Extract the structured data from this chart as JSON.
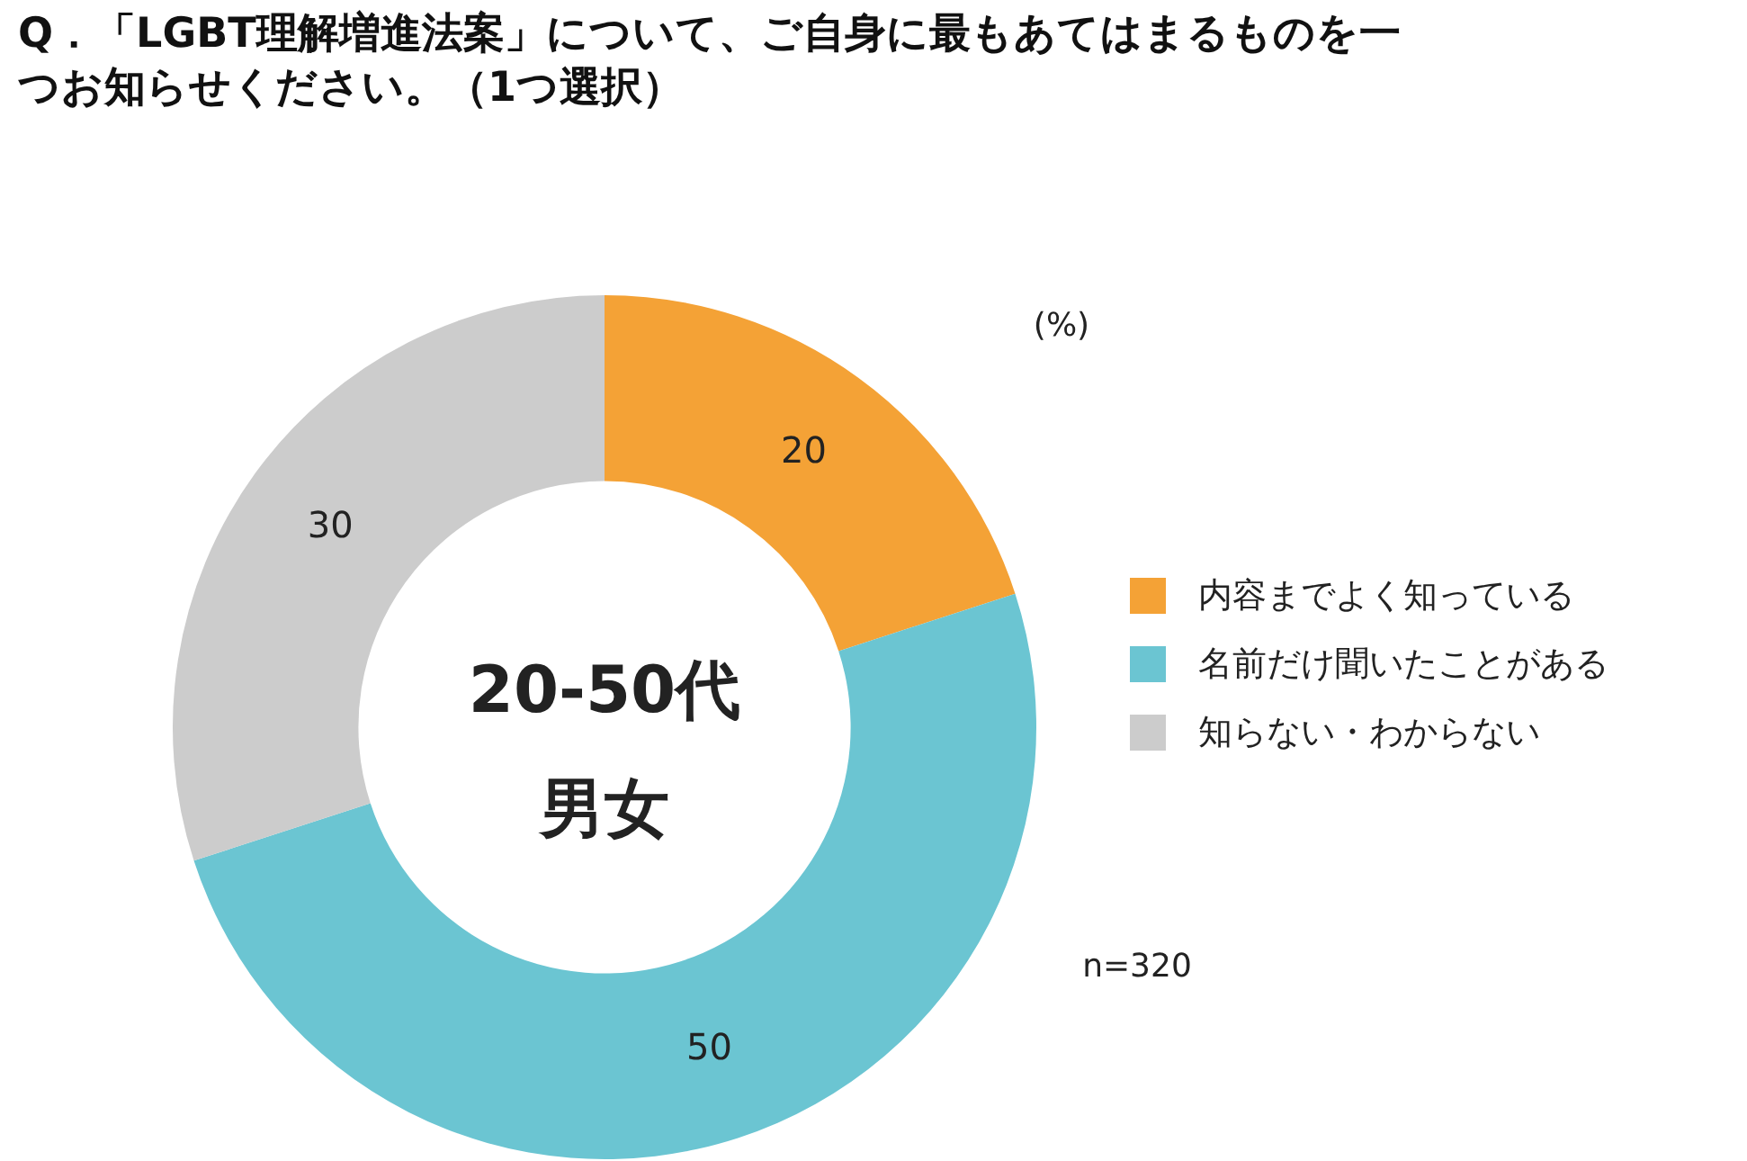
{
  "chart_data": {
    "type": "donut",
    "title": "Q．「LGBT理解増進法案」について、ご自身に最もあてはまるものを一つお知らせください。（1つ選択）",
    "categories": [
      "内容までよく知っている",
      "名前だけ聞いたことがある",
      "知らない・わからない"
    ],
    "values": [
      20,
      50,
      30
    ],
    "colors": [
      "#f4a236",
      "#6bc5d2",
      "#cccccc"
    ],
    "data_labels": true,
    "legend": "right",
    "annotations": [
      "20-50代",
      "男女",
      "(%)",
      "n=320"
    ]
  }
}
